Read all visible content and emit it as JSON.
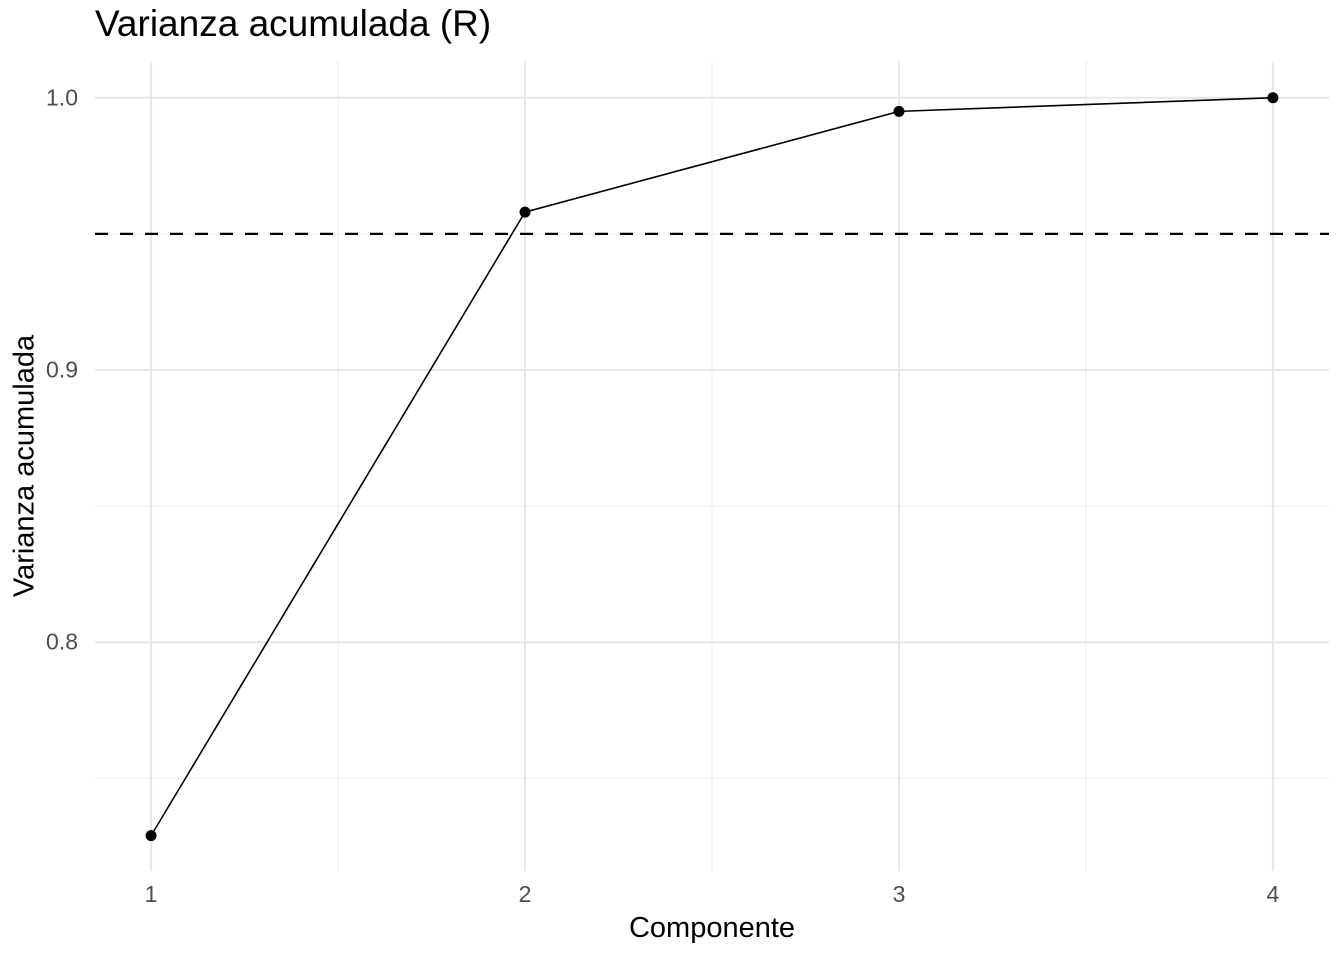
{
  "figure": {
    "title": "Varianza acumulada (R)"
  },
  "chart_data": {
    "type": "line",
    "title": "Varianza acumulada (R)",
    "xlabel": "Componente",
    "ylabel": "Varianza acumulada",
    "x": [
      1,
      2,
      3,
      4
    ],
    "series": [
      {
        "name": "Varianza acumulada",
        "values": [
          0.729,
          0.958,
          0.995,
          1.0
        ]
      }
    ],
    "hline": {
      "y": 0.95,
      "style": "dashed",
      "color": "#000000"
    },
    "xlim": [
      0.85,
      4.15
    ],
    "ylim": [
      0.716,
      1.0135
    ],
    "x_ticks": {
      "values": [
        1,
        2,
        3,
        4
      ],
      "labels": [
        "1",
        "2",
        "3",
        "4"
      ]
    },
    "y_ticks": {
      "values": [
        1.0,
        0.9,
        0.8
      ],
      "labels": [
        "1.0",
        "0.9",
        "0.8"
      ]
    },
    "x_minor": [
      1.5,
      2.5,
      3.5
    ],
    "y_minor": [
      0.75,
      0.85,
      0.95
    ],
    "grid": "major+minor",
    "legend_position": "none",
    "theme": {
      "background": "#ffffff",
      "grid_major_color": "#e7e7e7",
      "grid_minor_color": "#f0f0f0",
      "tick_label_color": "#4d4d4d",
      "text_color": "#000000",
      "line_color": "#000000",
      "point_color": "#000000"
    }
  }
}
